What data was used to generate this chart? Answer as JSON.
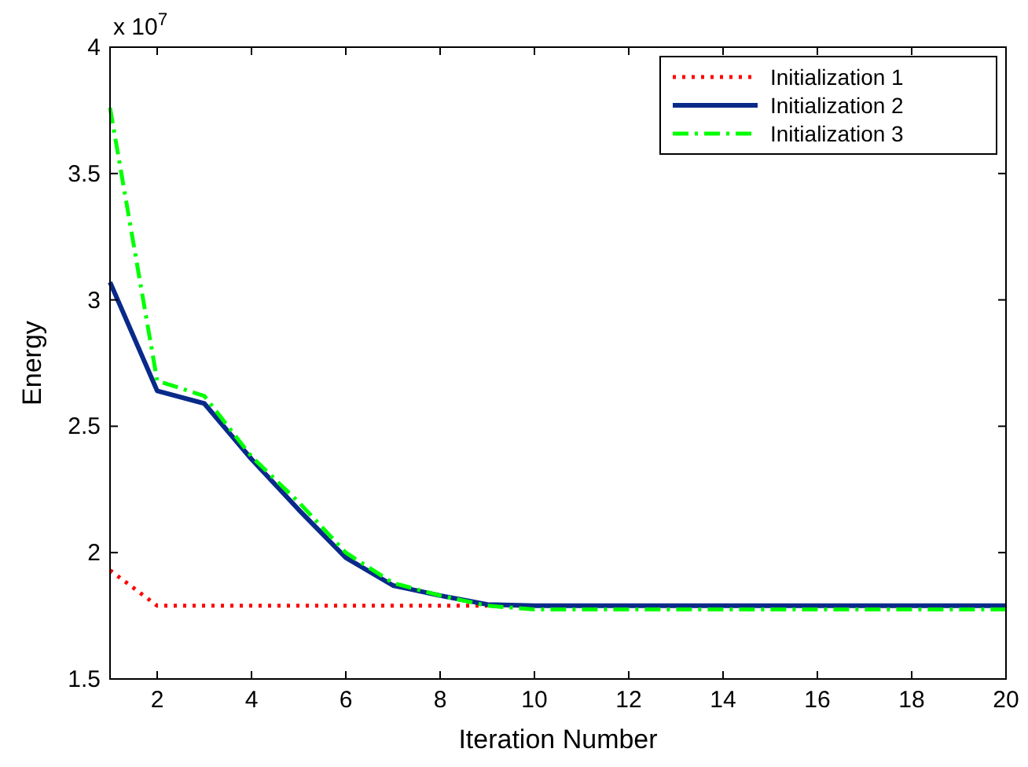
{
  "chart_data": {
    "type": "line",
    "xlabel": "Iteration Number",
    "ylabel": "Energy",
    "annotations": [
      "x 10$^{7}$"
    ],
    "x": [
      1,
      2,
      3,
      4,
      5,
      6,
      7,
      8,
      9,
      10,
      11,
      12,
      13,
      14,
      15,
      16,
      17,
      18,
      19,
      20
    ],
    "series": [
      {
        "name": "Initialization 1",
        "color": "#ff0000",
        "line_style": "dotted",
        "values": [
          1.93,
          1.79,
          1.79,
          1.79,
          1.79,
          1.79,
          1.79,
          1.79,
          1.79,
          null,
          null,
          null,
          null,
          null,
          null,
          null,
          null,
          null,
          null,
          null
        ]
      },
      {
        "name": "Initialization 2",
        "color": "#0a2a8a",
        "line_style": "solid",
        "values": [
          3.07,
          2.64,
          2.59,
          2.37,
          2.17,
          1.98,
          1.87,
          1.83,
          1.795,
          1.79,
          1.79,
          1.79,
          1.79,
          1.79,
          1.79,
          1.79,
          1.79,
          1.79,
          1.79,
          1.79
        ]
      },
      {
        "name": "Initialization 3",
        "color": "#00ff00",
        "line_style": "dashdot",
        "values": [
          3.76,
          2.68,
          2.62,
          2.38,
          2.2,
          2.0,
          1.88,
          1.83,
          1.79,
          1.775,
          1.775,
          1.775,
          1.775,
          1.775,
          1.775,
          1.775,
          1.775,
          1.775,
          1.775,
          1.775
        ]
      }
    ],
    "xlim": [
      1,
      20
    ],
    "xticks": [
      2,
      4,
      6,
      8,
      10,
      12,
      14,
      16,
      18,
      20
    ],
    "ylim": [
      1.5,
      4
    ],
    "yticks": [
      1.5,
      2,
      2.5,
      3,
      3.5,
      4
    ],
    "grid": false,
    "legend": "top right"
  }
}
